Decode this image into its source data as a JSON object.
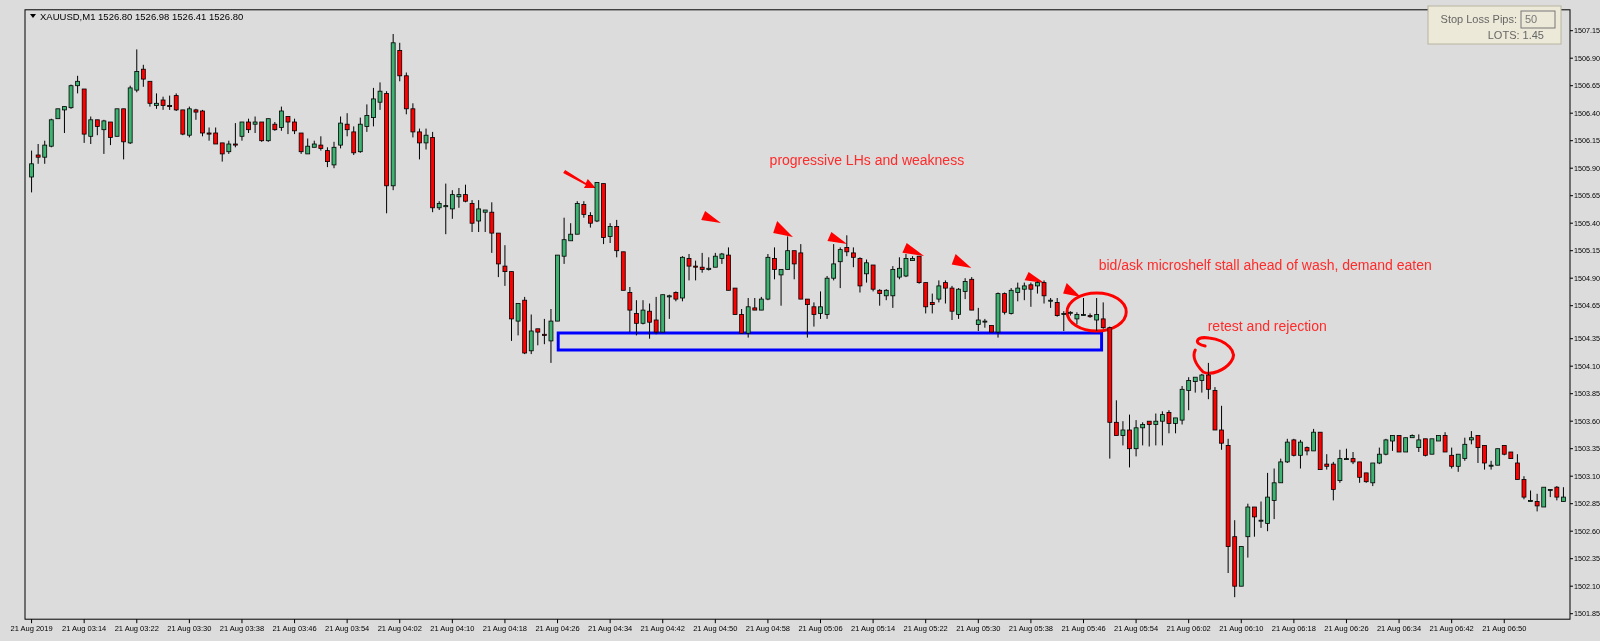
{
  "chart_data": {
    "type": "candlestick",
    "title": "XAUUSD,M1  1526.80 1526.98 1526.41 1526.80",
    "colors": [
      "#3cb371",
      "#ff0000",
      "#3cb371",
      "#3cb371",
      "#3cb371",
      "#3cb371",
      "#3cb371",
      "#3cb371",
      "#ff0000",
      "#3cb371",
      "#ff0000",
      "#3cb371",
      "#ff0000",
      "#3cb371",
      "#ff0000",
      "#3cb371",
      "#3cb371",
      "#ff0000",
      "#ff0000",
      "#3cb371",
      "#ff0000",
      "#ff0000",
      "#ff0000",
      "#ff0000",
      "#3cb371",
      "#ff0000",
      "#ff0000",
      "#ff0000",
      "#ff0000",
      "#ff0000",
      "#3cb371",
      "#ff0000",
      "#3cb371",
      "#ff0000",
      "#3cb371",
      "#ff0000",
      "#3cb371",
      "#ff0000",
      "#3cb371",
      "#ff0000",
      "#ff0000",
      "#ff0000",
      "#3cb371",
      "#3cb371",
      "#ff0000",
      "#ff0000",
      "#3cb371",
      "#3cb371",
      "#ff0000",
      "#ff0000",
      "#3cb371",
      "#3cb371",
      "#3cb371",
      "#3cb371",
      "#ff0000",
      "#3cb371",
      "#ff0000",
      "#ff0000",
      "#ff0000",
      "#ff0000",
      "#3cb371",
      "#ff0000",
      "#3cb371",
      "#3cb371",
      "#3cb371",
      "#3cb371",
      "#ff0000",
      "#ff0000",
      "#3cb371",
      "#3cb371",
      "#ff0000",
      "#ff0000",
      "#ff0000",
      "#ff0000",
      "#3cb371",
      "#ff0000",
      "#3cb371",
      "#ff0000",
      "#ff0000",
      "#3cb371",
      "#3cb371",
      "#3cb371",
      "#3cb371",
      "#3cb371",
      "#ff0000",
      "#ff0000",
      "#3cb371",
      "#ff0000",
      "#3cb371",
      "#ff0000",
      "#ff0000",
      "#ff0000",
      "#ff0000",
      "#3cb371",
      "#ff0000",
      "#ff0000",
      "#3cb371",
      "#3cb371",
      "#ff0000",
      "#3cb371",
      "#ff0000",
      "#ff0000",
      "#ff0000",
      "#3cb371",
      "#3cb371",
      "#3cb371",
      "#ff0000",
      "#ff0000",
      "#ff0000",
      "#3cb371",
      "#ff0000",
      "#3cb371",
      "#3cb371",
      "#ff0000",
      "#3cb371",
      "#3cb371",
      "#ff0000",
      "#ff0000",
      "#ff0000",
      "#ff0000",
      "#3cb371",
      "#3cb371",
      "#3cb371",
      "#3cb371",
      "#ff0000",
      "#ff0000",
      "#ff0000",
      "#3cb371",
      "#ff0000",
      "#ff0000",
      "#3cb371",
      "#3cb371",
      "#3cb371",
      "#3cb371",
      "#3cb371",
      "#ff0000",
      "#ff0000",
      "#ff0000",
      "#3cb371",
      "#ff0000",
      "#ff0000",
      "#3cb371",
      "#3cb371",
      "#ff0000",
      "#3cb371",
      "#3cb371",
      "#ff0000",
      "#3cb371",
      "#ff0000",
      "#3cb371",
      "#3cb371",
      "#3cb371",
      "#ff0000",
      "#3cb371",
      "#ff0000",
      "#3cb371",
      "#ff0000",
      "#3cb371",
      "#3cb371",
      "#3cb371",
      "#3cb371",
      "#ff0000",
      "#3cb371",
      "#ff0000",
      "#ff0000",
      "#ff0000",
      "#3cb371",
      "#ff0000",
      "#3cb371",
      "#3cb371",
      "#ff0000",
      "#3cb371",
      "#3cb371",
      "#ff0000",
      "#3cb371",
      "#3cb371",
      "#3cb371",
      "#3cb371",
      "#3cb371",
      "#ff0000",
      "#ff0000",
      "#ff0000",
      "#ff0000",
      "#ff0000",
      "#3cb371",
      "#3cb371",
      "#ff0000",
      "#3cb371",
      "#3cb371",
      "#3cb371",
      "#3cb371",
      "#3cb371",
      "#ff0000",
      "#3cb371",
      "#ff0000",
      "#3cb371",
      "#ff0000",
      "#ff0000",
      "#ff0000",
      "#3cb371",
      "#3cb371",
      "#ff0000",
      "#ff0000",
      "#ff0000",
      "#3cb371",
      "#3cb371",
      "#3cb371",
      "#3cb371",
      "#ff0000",
      "#3cb371",
      "#3cb371",
      "#3cb371",
      "#ff0000",
      "#3cb371",
      "#3cb371",
      "#ff0000",
      "#ff0000",
      "#3cb371",
      "#3cb371",
      "#3cb371",
      "#ff0000",
      "#ff0000",
      "#3cb371",
      "#3cb371",
      "#ff0000",
      "#ff0000",
      "#ff0000",
      "#ff0000",
      "#3cb371",
      "#ff0000",
      "#3cb371",
      "#3cb371",
      "#ff0000",
      "#3cb371"
    ],
    "xlim": [
      "2019-08-21T03:05",
      "2019-08-21T07:00"
    ],
    "ylim": [
      1501.8,
      1507.34
    ],
    "xticks": [
      {
        "value": "2019-08-21T03:06",
        "label": "21 Aug 2019"
      },
      {
        "value": "2019-08-21T03:14",
        "label": "21 Aug 03:14"
      },
      {
        "value": "2019-08-21T03:22",
        "label": "21 Aug 03:22"
      },
      {
        "value": "2019-08-21T03:30",
        "label": "21 Aug 03:30"
      },
      {
        "value": "2019-08-21T03:38",
        "label": "21 Aug 03:38"
      },
      {
        "value": "2019-08-21T03:46",
        "label": "21 Aug 03:46"
      },
      {
        "value": "2019-08-21T03:54",
        "label": "21 Aug 03:54"
      },
      {
        "value": "2019-08-21T04:02",
        "label": "21 Aug 04:02"
      },
      {
        "value": "2019-08-21T04:10",
        "label": "21 Aug 04:10"
      },
      {
        "value": "2019-08-21T04:18",
        "label": "21 Aug 04:18"
      },
      {
        "value": "2019-08-21T04:26",
        "label": "21 Aug 04:26"
      },
      {
        "value": "2019-08-21T04:34",
        "label": "21 Aug 04:34"
      },
      {
        "value": "2019-08-21T04:42",
        "label": "21 Aug 04:42"
      },
      {
        "value": "2019-08-21T04:50",
        "label": "21 Aug 04:50"
      },
      {
        "value": "2019-08-21T04:58",
        "label": "21 Aug 04:58"
      },
      {
        "value": "2019-08-21T05:06",
        "label": "21 Aug 05:06"
      },
      {
        "value": "2019-08-21T05:14",
        "label": "21 Aug 05:14"
      },
      {
        "value": "2019-08-21T05:22",
        "label": "21 Aug 05:22"
      },
      {
        "value": "2019-08-21T05:30",
        "label": "21 Aug 05:30"
      },
      {
        "value": "2019-08-21T05:38",
        "label": "21 Aug 05:38"
      },
      {
        "value": "2019-08-21T05:46",
        "label": "21 Aug 05:46"
      },
      {
        "value": "2019-08-21T05:54",
        "label": "21 Aug 05:54"
      },
      {
        "value": "2019-08-21T06:02",
        "label": "21 Aug 06:02"
      },
      {
        "value": "2019-08-21T06:10",
        "label": "21 Aug 06:10"
      },
      {
        "value": "2019-08-21T06:18",
        "label": "21 Aug 06:18"
      },
      {
        "value": "2019-08-21T06:26",
        "label": "21 Aug 06:26"
      },
      {
        "value": "2019-08-21T06:34",
        "label": "21 Aug 06:34"
      },
      {
        "value": "2019-08-21T06:42",
        "label": "21 Aug 06:42"
      },
      {
        "value": "2019-08-21T06:50",
        "label": "21 Aug 06:50"
      }
    ],
    "yticks": [
      1501.85,
      {
        "value": 1502.1,
        "label": "1502.10"
      },
      1502.35,
      {
        "value": 1502.6,
        "label": "1502.60"
      },
      1502.85,
      {
        "value": 1503.1,
        "label": "1503.10"
      },
      1503.35,
      {
        "value": 1503.6,
        "label": "1503.60"
      },
      1503.85,
      {
        "value": 1504.1,
        "label": "1504.10"
      },
      1504.35,
      1504.65,
      {
        "value": 1504.9,
        "label": "1504.90"
      },
      1505.15,
      {
        "value": 1505.4,
        "label": "1505.40"
      },
      1505.65,
      {
        "value": 1505.9,
        "label": "1505.90"
      },
      1506.15,
      {
        "value": 1506.4,
        "label": "1506.40"
      },
      1506.65,
      {
        "value": 1506.9,
        "label": "1506.90"
      },
      1507.15
    ],
    "annotations": [
      "progressive LHs and weakness",
      "bid/ask microshelf stall ahead of wash, demand eaten",
      "retest and rejection",
      "Stop Loss Pips:",
      "50",
      "LOTS: 1.45"
    ],
    "x": [
      "2019-08-21T03:06",
      "2019-08-21T03:07",
      "2019-08-21T03:08",
      "2019-08-21T03:09",
      "2019-08-21T03:10",
      "2019-08-21T03:11",
      "2019-08-21T03:12",
      "2019-08-21T03:13",
      "2019-08-21T03:14",
      "2019-08-21T03:15",
      "2019-08-21T03:16",
      "2019-08-21T03:17",
      "2019-08-21T03:18",
      "2019-08-21T03:19",
      "2019-08-21T03:20",
      "2019-08-21T03:21",
      "2019-08-21T03:22",
      "2019-08-21T03:23",
      "2019-08-21T03:24",
      "2019-08-21T03:25",
      "2019-08-21T03:26",
      "2019-08-21T03:27",
      "2019-08-21T03:28",
      "2019-08-21T03:29",
      "2019-08-21T03:30",
      "2019-08-21T03:31",
      "2019-08-21T03:32",
      "2019-08-21T03:33",
      "2019-08-21T03:34",
      "2019-08-21T03:35",
      "2019-08-21T03:36",
      "2019-08-21T03:37",
      "2019-08-21T03:38",
      "2019-08-21T03:39",
      "2019-08-21T03:40",
      "2019-08-21T03:41",
      "2019-08-21T03:42",
      "2019-08-21T03:43",
      "2019-08-21T03:44",
      "2019-08-21T03:45",
      "2019-08-21T03:46",
      "2019-08-21T03:47",
      "2019-08-21T03:48",
      "2019-08-21T03:49",
      "2019-08-21T03:50",
      "2019-08-21T03:51",
      "2019-08-21T03:52",
      "2019-08-21T03:53",
      "2019-08-21T03:54",
      "2019-08-21T03:55",
      "2019-08-21T03:56",
      "2019-08-21T03:57",
      "2019-08-21T03:58",
      "2019-08-21T03:59",
      "2019-08-21T04:00",
      "2019-08-21T04:01",
      "2019-08-21T04:02",
      "2019-08-21T04:03",
      "2019-08-21T04:04",
      "2019-08-21T04:05",
      "2019-08-21T04:06",
      "2019-08-21T04:07",
      "2019-08-21T04:08",
      "2019-08-21T04:09",
      "2019-08-21T04:10",
      "2019-08-21T04:11",
      "2019-08-21T04:12",
      "2019-08-21T04:13",
      "2019-08-21T04:14",
      "2019-08-21T04:15",
      "2019-08-21T04:16",
      "2019-08-21T04:17",
      "2019-08-21T04:18",
      "2019-08-21T04:19",
      "2019-08-21T04:20",
      "2019-08-21T04:21",
      "2019-08-21T04:22",
      "2019-08-21T04:23",
      "2019-08-21T04:24",
      "2019-08-21T04:25",
      "2019-08-21T04:26",
      "2019-08-21T04:27",
      "2019-08-21T04:28",
      "2019-08-21T04:29",
      "2019-08-21T04:30",
      "2019-08-21T04:31",
      "2019-08-21T04:32",
      "2019-08-21T04:33",
      "2019-08-21T04:34",
      "2019-08-21T04:35",
      "2019-08-21T04:36",
      "2019-08-21T04:37",
      "2019-08-21T04:38",
      "2019-08-21T04:39",
      "2019-08-21T04:40",
      "2019-08-21T04:41",
      "2019-08-21T04:42",
      "2019-08-21T04:43",
      "2019-08-21T04:44",
      "2019-08-21T04:45",
      "2019-08-21T04:46",
      "2019-08-21T04:47",
      "2019-08-21T04:48",
      "2019-08-21T04:49",
      "2019-08-21T04:50",
      "2019-08-21T04:51",
      "2019-08-21T04:52",
      "2019-08-21T04:53",
      "2019-08-21T04:54",
      "2019-08-21T04:55",
      "2019-08-21T04:56",
      "2019-08-21T04:57",
      "2019-08-21T04:58",
      "2019-08-21T04:59",
      "2019-08-21T05:00",
      "2019-08-21T05:01",
      "2019-08-21T05:02",
      "2019-08-21T05:03",
      "2019-08-21T05:04",
      "2019-08-21T05:05",
      "2019-08-21T05:06",
      "2019-08-21T05:07",
      "2019-08-21T05:08",
      "2019-08-21T05:09",
      "2019-08-21T05:10",
      "2019-08-21T05:11",
      "2019-08-21T05:12",
      "2019-08-21T05:13",
      "2019-08-21T05:14",
      "2019-08-21T05:15",
      "2019-08-21T05:16",
      "2019-08-21T05:17",
      "2019-08-21T05:18",
      "2019-08-21T05:19",
      "2019-08-21T05:20",
      "2019-08-21T05:21",
      "2019-08-21T05:22",
      "2019-08-21T05:23",
      "2019-08-21T05:24",
      "2019-08-21T05:25",
      "2019-08-21T05:26",
      "2019-08-21T05:27",
      "2019-08-21T05:28",
      "2019-08-21T05:29",
      "2019-08-21T05:30",
      "2019-08-21T05:31",
      "2019-08-21T05:32",
      "2019-08-21T05:33",
      "2019-08-21T05:34",
      "2019-08-21T05:35",
      "2019-08-21T05:36",
      "2019-08-21T05:37",
      "2019-08-21T05:38",
      "2019-08-21T05:39",
      "2019-08-21T05:40",
      "2019-08-21T05:41",
      "2019-08-21T05:42",
      "2019-08-21T05:43",
      "2019-08-21T05:44",
      "2019-08-21T05:45",
      "2019-08-21T05:46",
      "2019-08-21T05:47",
      "2019-08-21T05:48",
      "2019-08-21T05:49",
      "2019-08-21T05:50",
      "2019-08-21T05:51",
      "2019-08-21T05:52",
      "2019-08-21T05:53",
      "2019-08-21T05:54",
      "2019-08-21T05:55",
      "2019-08-21T05:56",
      "2019-08-21T05:57",
      "2019-08-21T05:58",
      "2019-08-21T05:59",
      "2019-08-21T06:00",
      "2019-08-21T06:01",
      "2019-08-21T06:02",
      "2019-08-21T06:03",
      "2019-08-21T06:04",
      "2019-08-21T06:05",
      "2019-08-21T06:06",
      "2019-08-21T06:07",
      "2019-08-21T06:08",
      "2019-08-21T06:09",
      "2019-08-21T06:10",
      "2019-08-21T06:11",
      "2019-08-21T06:12",
      "2019-08-21T06:13",
      "2019-08-21T06:14",
      "2019-08-21T06:15",
      "2019-08-21T06:16",
      "2019-08-21T06:17",
      "2019-08-21T06:18",
      "2019-08-21T06:19",
      "2019-08-21T06:20",
      "2019-08-21T06:21",
      "2019-08-21T06:22",
      "2019-08-21T06:23",
      "2019-08-21T06:24",
      "2019-08-21T06:25",
      "2019-08-21T06:26",
      "2019-08-21T06:27",
      "2019-08-21T06:28",
      "2019-08-21T06:29",
      "2019-08-21T06:30",
      "2019-08-21T06:31",
      "2019-08-21T06:32",
      "2019-08-21T06:33",
      "2019-08-21T06:34",
      "2019-08-21T06:35",
      "2019-08-21T06:36",
      "2019-08-21T06:37",
      "2019-08-21T06:38",
      "2019-08-21T06:39",
      "2019-08-21T06:40",
      "2019-08-21T06:41",
      "2019-08-21T06:42",
      "2019-08-21T06:43",
      "2019-08-21T06:44",
      "2019-08-21T06:45",
      "2019-08-21T06:46",
      "2019-08-21T06:47",
      "2019-08-21T06:48",
      "2019-08-21T06:49",
      "2019-08-21T06:50",
      "2019-08-21T06:51",
      "2019-08-21T06:52",
      "2019-08-21T06:53",
      "2019-08-21T06:54",
      "2019-08-21T06:55",
      "2019-08-21T06:56",
      "2019-08-21T06:57",
      "2019-08-21T06:58",
      "2019-08-21T06:59"
    ],
    "ohlc": [
      [
        1505.82,
        1506.06,
        1505.68,
        1505.94
      ],
      [
        1506.02,
        1506.12,
        1505.94,
        1506.0
      ],
      [
        1506.0,
        1506.15,
        1505.94,
        1506.11
      ],
      [
        1506.1,
        1506.35,
        1506.09,
        1506.34
      ],
      [
        1506.35,
        1506.44,
        1506.35,
        1506.44
      ],
      [
        1506.43,
        1506.46,
        1506.22,
        1506.46
      ],
      [
        1506.45,
        1506.66,
        1506.44,
        1506.65
      ],
      [
        1506.65,
        1506.74,
        1506.58,
        1506.69
      ],
      [
        1506.62,
        1506.62,
        1506.13,
        1506.21
      ],
      [
        1506.19,
        1506.37,
        1506.12,
        1506.34
      ],
      [
        1506.34,
        1506.34,
        1506.2,
        1506.28
      ],
      [
        1506.25,
        1506.34,
        1506.03,
        1506.33
      ],
      [
        1506.32,
        1506.32,
        1506.11,
        1506.18
      ],
      [
        1506.19,
        1506.44,
        1506.19,
        1506.44
      ],
      [
        1506.44,
        1506.44,
        1505.98,
        1506.14
      ],
      [
        1506.13,
        1506.65,
        1506.12,
        1506.63
      ],
      [
        1506.61,
        1506.98,
        1506.59,
        1506.78
      ],
      [
        1506.8,
        1506.84,
        1506.64,
        1506.71
      ],
      [
        1506.69,
        1506.69,
        1506.46,
        1506.49
      ],
      [
        1506.47,
        1506.58,
        1506.44,
        1506.49
      ],
      [
        1506.52,
        1506.55,
        1506.43,
        1506.47
      ],
      [
        1506.47,
        1506.56,
        1506.43,
        1506.46
      ],
      [
        1506.56,
        1506.58,
        1506.42,
        1506.43
      ],
      [
        1506.43,
        1506.43,
        1506.2,
        1506.21
      ],
      [
        1506.2,
        1506.46,
        1506.18,
        1506.44
      ],
      [
        1506.43,
        1506.44,
        1506.34,
        1506.41
      ],
      [
        1506.42,
        1506.43,
        1506.19,
        1506.22
      ],
      [
        1506.22,
        1506.27,
        1506.15,
        1506.21
      ],
      [
        1506.22,
        1506.27,
        1506.12,
        1506.12
      ],
      [
        1506.13,
        1506.13,
        1505.96,
        1506.03
      ],
      [
        1506.05,
        1506.15,
        1506.03,
        1506.12
      ],
      [
        1506.12,
        1506.31,
        1506.09,
        1506.11
      ],
      [
        1506.19,
        1506.32,
        1506.15,
        1506.32
      ],
      [
        1506.32,
        1506.35,
        1506.22,
        1506.25
      ],
      [
        1506.3,
        1506.37,
        1506.22,
        1506.32
      ],
      [
        1506.32,
        1506.32,
        1506.14,
        1506.15
      ],
      [
        1506.15,
        1506.35,
        1506.14,
        1506.35
      ],
      [
        1506.3,
        1506.32,
        1506.24,
        1506.25
      ],
      [
        1506.27,
        1506.46,
        1506.24,
        1506.42
      ],
      [
        1506.37,
        1506.37,
        1506.21,
        1506.32
      ],
      [
        1506.32,
        1506.35,
        1506.21,
        1506.24
      ],
      [
        1506.22,
        1506.22,
        1506.03,
        1506.05
      ],
      [
        1506.03,
        1506.17,
        1506.03,
        1506.1
      ],
      [
        1506.09,
        1506.15,
        1506.09,
        1506.12
      ],
      [
        1506.11,
        1506.19,
        1506.06,
        1506.08
      ],
      [
        1506.06,
        1506.09,
        1505.91,
        1505.96
      ],
      [
        1505.93,
        1506.14,
        1505.9,
        1506.09
      ],
      [
        1506.11,
        1506.37,
        1506.08,
        1506.31
      ],
      [
        1506.3,
        1506.4,
        1506.19,
        1506.25
      ],
      [
        1506.23,
        1506.28,
        1506.02,
        1506.04
      ],
      [
        1506.05,
        1506.36,
        1506.04,
        1506.3
      ],
      [
        1506.28,
        1506.48,
        1506.23,
        1506.38
      ],
      [
        1506.36,
        1506.63,
        1506.28,
        1506.53
      ],
      [
        1506.5,
        1506.68,
        1506.43,
        1506.6
      ],
      [
        1506.58,
        1506.6,
        1505.49,
        1505.74
      ],
      [
        1505.74,
        1507.12,
        1505.7,
        1507.04
      ],
      [
        1506.97,
        1507.04,
        1506.69,
        1506.74
      ],
      [
        1506.74,
        1506.77,
        1506.39,
        1506.44
      ],
      [
        1506.44,
        1506.49,
        1506.18,
        1506.23
      ],
      [
        1506.23,
        1506.26,
        1505.98,
        1506.13
      ],
      [
        1506.13,
        1506.26,
        1506.07,
        1506.2
      ],
      [
        1506.18,
        1506.23,
        1505.5,
        1505.54
      ],
      [
        1505.54,
        1505.6,
        1505.52,
        1505.58
      ],
      [
        1505.55,
        1505.76,
        1505.3,
        1505.56
      ],
      [
        1505.53,
        1505.7,
        1505.44,
        1505.66
      ],
      [
        1505.64,
        1505.72,
        1505.54,
        1505.66
      ],
      [
        1505.66,
        1505.75,
        1505.59,
        1505.6
      ],
      [
        1505.58,
        1505.61,
        1505.32,
        1505.4
      ],
      [
        1505.42,
        1505.61,
        1505.32,
        1505.53
      ],
      [
        1505.5,
        1505.52,
        1505.32,
        1505.52
      ],
      [
        1505.5,
        1505.59,
        1505.13,
        1505.31
      ],
      [
        1505.31,
        1505.31,
        1504.91,
        1505.03
      ],
      [
        1505.01,
        1505.2,
        1504.83,
        1504.96
      ],
      [
        1504.96,
        1504.96,
        1504.33,
        1504.53
      ],
      [
        1504.51,
        1504.67,
        1504.38,
        1504.67
      ],
      [
        1504.7,
        1504.73,
        1504.21,
        1504.22
      ],
      [
        1504.24,
        1504.57,
        1504.21,
        1504.42
      ],
      [
        1504.44,
        1504.44,
        1504.29,
        1504.41
      ],
      [
        1504.39,
        1504.53,
        1504.3,
        1504.38
      ],
      [
        1504.33,
        1504.62,
        1504.13,
        1504.51
      ],
      [
        1504.51,
        1505.11,
        1504.51,
        1505.11
      ],
      [
        1505.1,
        1505.45,
        1505.03,
        1505.25
      ],
      [
        1505.24,
        1505.4,
        1505.24,
        1505.3
      ],
      [
        1505.3,
        1505.6,
        1505.3,
        1505.58
      ],
      [
        1505.57,
        1505.6,
        1505.45,
        1505.48
      ],
      [
        1505.47,
        1505.5,
        1505.36,
        1505.4
      ],
      [
        1505.42,
        1505.77,
        1505.41,
        1505.77
      ],
      [
        1505.76,
        1505.76,
        1505.21,
        1505.27
      ],
      [
        1505.28,
        1505.4,
        1505.22,
        1505.37
      ],
      [
        1505.37,
        1505.43,
        1505.09,
        1505.15
      ],
      [
        1505.14,
        1505.14,
        1504.79,
        1504.79
      ],
      [
        1504.77,
        1504.82,
        1504.41,
        1504.61
      ],
      [
        1504.58,
        1504.7,
        1504.38,
        1504.49
      ],
      [
        1504.49,
        1504.7,
        1504.48,
        1504.61
      ],
      [
        1504.6,
        1504.67,
        1504.35,
        1504.5
      ],
      [
        1504.52,
        1504.73,
        1504.39,
        1504.41
      ],
      [
        1504.41,
        1504.75,
        1504.41,
        1504.75
      ],
      [
        1504.73,
        1504.75,
        1504.53,
        1504.74
      ],
      [
        1504.77,
        1504.78,
        1504.69,
        1504.71
      ],
      [
        1504.72,
        1505.1,
        1504.69,
        1505.09
      ],
      [
        1505.08,
        1505.12,
        1504.88,
        1505.01
      ],
      [
        1505.01,
        1505.06,
        1504.88,
        1505.0
      ],
      [
        1505.0,
        1505.13,
        1504.95,
        1504.98
      ],
      [
        1504.98,
        1505.09,
        1504.97,
        1504.99
      ],
      [
        1505.0,
        1505.13,
        1505.0,
        1505.1
      ],
      [
        1505.08,
        1505.13,
        1505.03,
        1505.12
      ],
      [
        1505.11,
        1505.18,
        1504.79,
        1504.79
      ],
      [
        1504.81,
        1504.81,
        1504.57,
        1504.57
      ],
      [
        1504.57,
        1504.62,
        1504.4,
        1504.4
      ],
      [
        1504.4,
        1504.72,
        1504.36,
        1504.64
      ],
      [
        1504.63,
        1504.72,
        1504.61,
        1504.61
      ],
      [
        1504.61,
        1504.73,
        1504.61,
        1504.71
      ],
      [
        1504.71,
        1505.12,
        1504.7,
        1505.09
      ],
      [
        1505.08,
        1505.18,
        1504.89,
        1504.98
      ],
      [
        1504.93,
        1504.98,
        1504.65,
        1504.98
      ],
      [
        1504.98,
        1505.28,
        1504.98,
        1505.15
      ],
      [
        1505.15,
        1505.15,
        1504.89,
        1505.03
      ],
      [
        1505.13,
        1505.21,
        1504.71,
        1504.71
      ],
      [
        1504.71,
        1504.71,
        1504.36,
        1504.66
      ],
      [
        1504.64,
        1504.68,
        1504.46,
        1504.57
      ],
      [
        1504.58,
        1504.78,
        1504.53,
        1504.64
      ],
      [
        1504.57,
        1504.92,
        1504.53,
        1504.9
      ],
      [
        1504.9,
        1505.21,
        1504.88,
        1505.03
      ],
      [
        1505.05,
        1505.18,
        1504.81,
        1505.16
      ],
      [
        1505.18,
        1505.29,
        1505.1,
        1505.14
      ],
      [
        1505.13,
        1505.18,
        1505.0,
        1505.09
      ],
      [
        1505.08,
        1505.09,
        1504.77,
        1504.83
      ],
      [
        1504.94,
        1505.07,
        1504.86,
        1505.04
      ],
      [
        1505.02,
        1505.02,
        1504.78,
        1504.8
      ],
      [
        1504.79,
        1504.8,
        1504.65,
        1504.76
      ],
      [
        1504.74,
        1504.8,
        1504.7,
        1504.79
      ],
      [
        1504.74,
        1505.01,
        1504.63,
        1504.98
      ],
      [
        1504.91,
        1505.09,
        1504.89,
        1504.99
      ],
      [
        1504.92,
        1505.12,
        1504.91,
        1505.08
      ],
      [
        1505.06,
        1505.1,
        1505.06,
        1505.08
      ],
      [
        1505.1,
        1505.1,
        1504.85,
        1504.86
      ],
      [
        1504.86,
        1504.86,
        1504.58,
        1504.64
      ],
      [
        1504.68,
        1504.76,
        1504.58,
        1504.66
      ],
      [
        1504.71,
        1504.88,
        1504.68,
        1504.83
      ],
      [
        1504.86,
        1504.88,
        1504.67,
        1504.81
      ],
      [
        1504.81,
        1504.83,
        1504.52,
        1504.6
      ],
      [
        1504.57,
        1504.81,
        1504.53,
        1504.8
      ],
      [
        1504.78,
        1504.9,
        1504.71,
        1504.87
      ],
      [
        1504.89,
        1504.91,
        1504.61,
        1504.61
      ],
      [
        1504.48,
        1504.63,
        1504.42,
        1504.52
      ],
      [
        1504.51,
        1504.53,
        1504.45,
        1504.51
      ],
      [
        1504.47,
        1504.47,
        1504.41,
        1504.41
      ],
      [
        1504.41,
        1504.77,
        1504.36,
        1504.76
      ],
      [
        1504.76,
        1504.77,
        1504.57,
        1504.59
      ],
      [
        1504.58,
        1504.81,
        1504.57,
        1504.79
      ],
      [
        1504.77,
        1504.86,
        1504.69,
        1504.81
      ],
      [
        1504.8,
        1504.86,
        1504.7,
        1504.83
      ],
      [
        1504.84,
        1504.86,
        1504.64,
        1504.8
      ],
      [
        1504.83,
        1504.87,
        1504.76,
        1504.86
      ],
      [
        1504.86,
        1504.88,
        1504.67,
        1504.74
      ],
      [
        1504.7,
        1504.72,
        1504.63,
        1504.7
      ],
      [
        1504.68,
        1504.72,
        1504.55,
        1504.56
      ],
      [
        1504.58,
        1504.6,
        1504.42,
        1504.58
      ],
      [
        1504.59,
        1504.6,
        1504.56,
        1504.59
      ],
      [
        1504.53,
        1504.59,
        1504.48,
        1504.57
      ],
      [
        1504.57,
        1504.72,
        1504.56,
        1504.57
      ],
      [
        1504.56,
        1504.58,
        1504.54,
        1504.55
      ],
      [
        1504.52,
        1504.72,
        1504.42,
        1504.57
      ],
      [
        1504.53,
        1504.68,
        1504.44,
        1504.45
      ],
      [
        1504.45,
        1504.46,
        1503.26,
        1503.59
      ],
      [
        1503.59,
        1503.79,
        1503.47,
        1503.47
      ],
      [
        1503.47,
        1503.6,
        1503.38,
        1503.52
      ],
      [
        1503.52,
        1503.66,
        1503.18,
        1503.35
      ],
      [
        1503.35,
        1503.61,
        1503.28,
        1503.54
      ],
      [
        1503.54,
        1503.59,
        1503.38,
        1503.57
      ],
      [
        1503.6,
        1503.6,
        1503.37,
        1503.57
      ],
      [
        1503.57,
        1503.67,
        1503.38,
        1503.6
      ],
      [
        1503.6,
        1503.69,
        1503.38,
        1503.66
      ],
      [
        1503.68,
        1503.7,
        1503.49,
        1503.58
      ],
      [
        1503.58,
        1503.63,
        1503.49,
        1503.63
      ],
      [
        1503.61,
        1503.92,
        1503.57,
        1503.89
      ],
      [
        1503.88,
        1504.0,
        1503.7,
        1503.97
      ],
      [
        1503.96,
        1504.0,
        1503.86,
        1504.0
      ],
      [
        1503.97,
        1504.03,
        1503.86,
        1504.02
      ],
      [
        1504.02,
        1504.13,
        1503.8,
        1503.89
      ],
      [
        1503.88,
        1503.91,
        1503.52,
        1503.52
      ],
      [
        1503.52,
        1503.74,
        1503.34,
        1503.4
      ],
      [
        1503.38,
        1503.44,
        1502.22,
        1502.46
      ],
      [
        1502.55,
        1502.7,
        1502.0,
        1502.1
      ],
      [
        1502.1,
        1502.46,
        1502.1,
        1502.46
      ],
      [
        1502.55,
        1502.85,
        1502.36,
        1502.82
      ],
      [
        1502.82,
        1502.82,
        1502.55,
        1502.73
      ],
      [
        1502.7,
        1502.87,
        1502.63,
        1502.7
      ],
      [
        1502.67,
        1503.13,
        1502.6,
        1502.91
      ],
      [
        1502.88,
        1503.17,
        1502.71,
        1503.04
      ],
      [
        1503.04,
        1503.26,
        1503.04,
        1503.23
      ],
      [
        1503.23,
        1503.44,
        1503.22,
        1503.41
      ],
      [
        1503.43,
        1503.44,
        1503.28,
        1503.29
      ],
      [
        1503.29,
        1503.43,
        1503.17,
        1503.41
      ],
      [
        1503.36,
        1503.37,
        1503.29,
        1503.33
      ],
      [
        1503.33,
        1503.53,
        1503.33,
        1503.5
      ],
      [
        1503.5,
        1503.5,
        1503.16,
        1503.16
      ],
      [
        1503.21,
        1503.3,
        1503.16,
        1503.19
      ],
      [
        1503.21,
        1503.23,
        1502.88,
        1502.98
      ],
      [
        1503.06,
        1503.34,
        1503.04,
        1503.26
      ],
      [
        1503.26,
        1503.35,
        1503.25,
        1503.26
      ],
      [
        1503.26,
        1503.32,
        1503.21,
        1503.23
      ],
      [
        1503.23,
        1503.23,
        1503.04,
        1503.09
      ],
      [
        1503.13,
        1503.13,
        1503.04,
        1503.05
      ],
      [
        1503.04,
        1503.22,
        1503.01,
        1503.22
      ],
      [
        1503.22,
        1503.36,
        1503.21,
        1503.3
      ],
      [
        1503.3,
        1503.44,
        1503.29,
        1503.43
      ],
      [
        1503.42,
        1503.47,
        1503.33,
        1503.47
      ],
      [
        1503.47,
        1503.47,
        1503.32,
        1503.32
      ],
      [
        1503.32,
        1503.45,
        1503.32,
        1503.45
      ],
      [
        1503.45,
        1503.48,
        1503.45,
        1503.47
      ],
      [
        1503.36,
        1503.48,
        1503.32,
        1503.43
      ],
      [
        1503.44,
        1503.44,
        1503.28,
        1503.29
      ],
      [
        1503.3,
        1503.44,
        1503.3,
        1503.44
      ],
      [
        1503.42,
        1503.47,
        1503.42,
        1503.47
      ],
      [
        1503.47,
        1503.5,
        1503.32,
        1503.32
      ],
      [
        1503.29,
        1503.36,
        1503.17,
        1503.19
      ],
      [
        1503.19,
        1503.3,
        1503.14,
        1503.3
      ],
      [
        1503.26,
        1503.45,
        1503.24,
        1503.39
      ],
      [
        1503.43,
        1503.51,
        1503.39,
        1503.45
      ],
      [
        1503.47,
        1503.47,
        1503.22,
        1503.36
      ],
      [
        1503.38,
        1503.38,
        1503.16,
        1503.22
      ],
      [
        1503.2,
        1503.24,
        1503.16,
        1503.2
      ],
      [
        1503.2,
        1503.35,
        1503.2,
        1503.35
      ],
      [
        1503.38,
        1503.38,
        1503.29,
        1503.3
      ],
      [
        1503.32,
        1503.32,
        1503.26,
        1503.26
      ],
      [
        1503.22,
        1503.3,
        1503.07,
        1503.07
      ],
      [
        1503.07,
        1503.1,
        1502.89,
        1502.91
      ],
      [
        1502.88,
        1502.97,
        1502.87,
        1502.88
      ],
      [
        1502.87,
        1502.94,
        1502.78,
        1502.83
      ],
      [
        1502.82,
        1503.0,
        1502.82,
        1503.0
      ],
      [
        1502.98,
        1502.98,
        1502.91,
        1502.98
      ],
      [
        1503.0,
        1503.01,
        1502.88,
        1502.91
      ],
      [
        1502.87,
        1503.0,
        1502.87,
        1502.91
      ]
    ]
  }
}
